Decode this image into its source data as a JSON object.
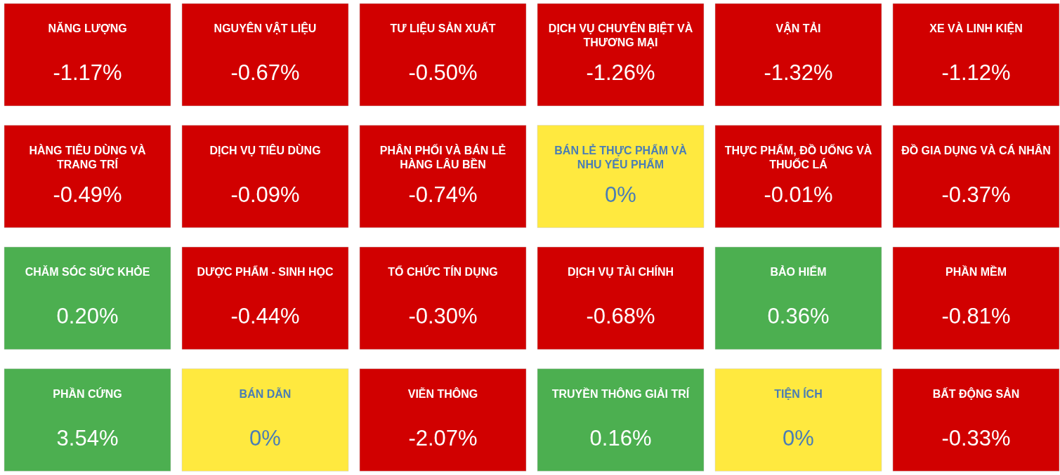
{
  "chart_data": {
    "type": "other",
    "categories": [
      "NĂNG LƯỢNG",
      "NGUYÊN VẬT LIỆU",
      "TƯ LIỆU SẢN XUẤT",
      "DỊCH VỤ CHUYÊN BIỆT VÀ THƯƠNG MẠI",
      "VẬN TẢI",
      "XE VÀ LINH KIỆN",
      "HÀNG TIÊU DÙNG VÀ TRANG TRÍ",
      "DỊCH VỤ TIÊU DÙNG",
      "PHÂN PHỐI VÀ BÁN LẺ HÀNG LÂU BỀN",
      "BÁN LẺ THỰC PHẨM VÀ NHU YẾU PHẨM",
      "THỰC PHẨM, ĐỒ UỐNG VÀ THUỐC LÁ",
      "ĐỒ GIA DỤNG VÀ CÁ NHÂN",
      "CHĂM SÓC SỨC KHỎE",
      "DƯỢC PHẨM - SINH HỌC",
      "TỔ CHỨC TÍN DỤNG",
      "DỊCH VỤ TÀI CHÍNH",
      "BẢO HIỂM",
      "PHẦN MỀM",
      "PHẦN CỨNG",
      "BÁN DẪN",
      "VIỄN THÔNG",
      "TRUYỀN THÔNG GIẢI TRÍ",
      "TIỆN ÍCH",
      "BẤT ĐỘNG SẢN"
    ],
    "values": [
      -1.17,
      -0.67,
      -0.5,
      -1.26,
      -1.32,
      -1.12,
      -0.49,
      -0.09,
      -0.74,
      0,
      -0.01,
      -0.37,
      0.2,
      -0.44,
      -0.3,
      -0.68,
      0.36,
      -0.81,
      3.54,
      0,
      -2.07,
      0.16,
      0,
      -0.33
    ],
    "value_labels": [
      "-1.17%",
      "-0.67%",
      "-0.50%",
      "-1.26%",
      "-1.32%",
      "-1.12%",
      "-0.49%",
      "-0.09%",
      "-0.74%",
      "0%",
      "-0.01%",
      "-0.37%",
      "0.20%",
      "-0.44%",
      "-0.30%",
      "-0.68%",
      "0.36%",
      "-0.81%",
      "3.54%",
      "0%",
      "-2.07%",
      "0.16%",
      "0%",
      "-0.33%"
    ],
    "colors": [
      "#d10000",
      "#d10000",
      "#d10000",
      "#d10000",
      "#d10000",
      "#d10000",
      "#d10000",
      "#d10000",
      "#d10000",
      "#ffe93f",
      "#d10000",
      "#d10000",
      "#4caf50",
      "#d10000",
      "#d10000",
      "#d10000",
      "#4caf50",
      "#d10000",
      "#4caf50",
      "#ffe93f",
      "#d10000",
      "#4caf50",
      "#ffe93f",
      "#d10000"
    ]
  }
}
